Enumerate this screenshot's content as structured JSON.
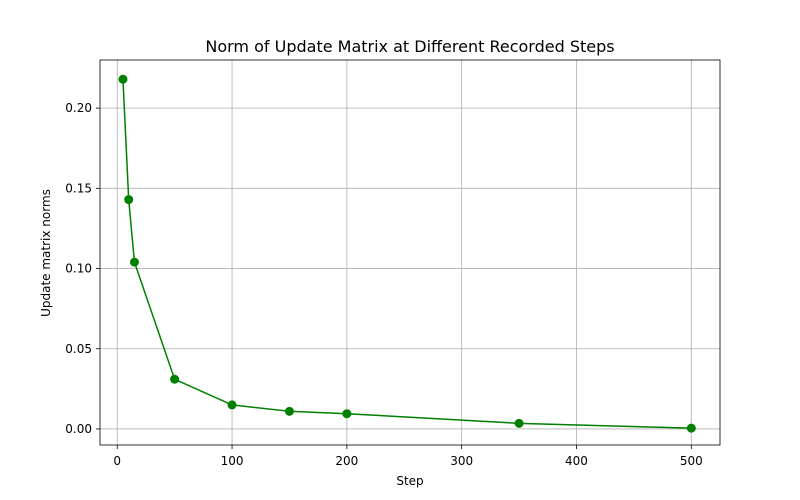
{
  "chart_data": {
    "type": "line",
    "title": "Norm of Update Matrix at Different Recorded Steps",
    "xlabel": "Step",
    "ylabel": "Update matrix norms",
    "xlim": [
      -15,
      525
    ],
    "ylim": [
      -0.01,
      0.23
    ],
    "xticks": [
      0,
      100,
      200,
      300,
      400,
      500
    ],
    "xtick_labels": [
      "0",
      "100",
      "200",
      "300",
      "400",
      "500"
    ],
    "yticks": [
      0.0,
      0.05,
      0.1,
      0.15,
      0.2
    ],
    "ytick_labels": [
      "0.00",
      "0.05",
      "0.10",
      "0.15",
      "0.20"
    ],
    "grid": true,
    "series": [
      {
        "color": "#008000",
        "marker": "circle",
        "x": [
          5,
          10,
          15,
          50,
          100,
          150,
          200,
          350,
          500
        ],
        "y": [
          0.218,
          0.143,
          0.104,
          0.031,
          0.015,
          0.011,
          0.0095,
          0.0035,
          0.0005
        ]
      }
    ]
  }
}
